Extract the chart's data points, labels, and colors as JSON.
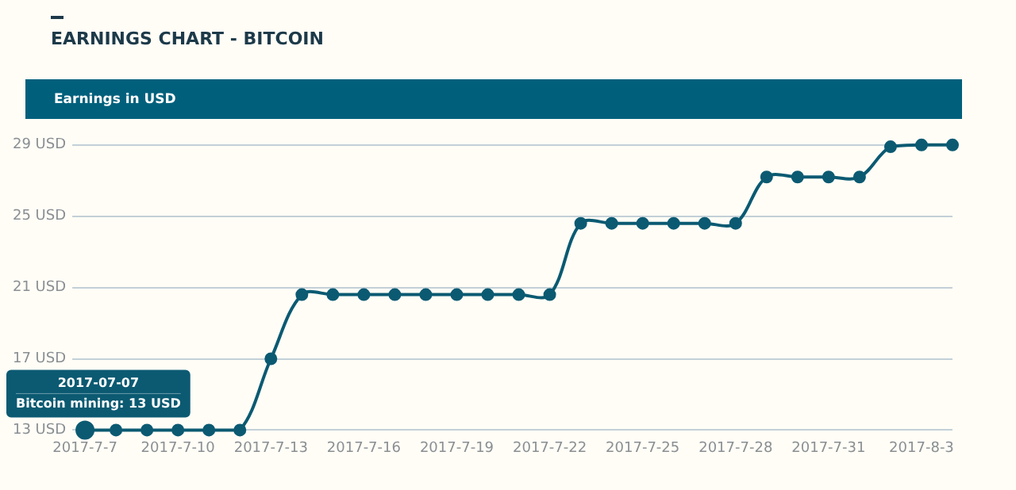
{
  "chart_data": {
    "type": "line",
    "title": "EARNINGS CHART - BITCOIN",
    "subtitle": "Earnings in USD",
    "categories": [
      "2017-7-7",
      null,
      null,
      "2017-7-10",
      null,
      null,
      "2017-7-13",
      null,
      null,
      "2017-7-16",
      null,
      null,
      "2017-7-19",
      null,
      null,
      "2017-7-22",
      null,
      null,
      "2017-7-25",
      null,
      null,
      "2017-7-28",
      null,
      null,
      "2017-7-31",
      null,
      null,
      "2017-8-3",
      null
    ],
    "series": [
      {
        "color": "#0b5a72",
        "values": [
          13,
          13,
          13,
          13,
          13,
          13,
          17,
          20.6,
          20.6,
          20.6,
          20.6,
          20.6,
          20.6,
          20.6,
          20.6,
          20.6,
          24.6,
          24.6,
          24.6,
          24.6,
          24.6,
          24.6,
          27.2,
          27.2,
          27.2,
          27.2,
          28.9,
          29,
          29
        ]
      }
    ],
    "ylim": [
      13,
      29
    ],
    "yticks": [
      {
        "value": 13,
        "label": "13 USD"
      },
      {
        "value": 17,
        "label": "17 USD"
      },
      {
        "value": 21,
        "label": "21 USD"
      },
      {
        "value": 25,
        "label": "25 USD"
      },
      {
        "value": 29,
        "label": "29 USD"
      }
    ],
    "annotations": [
      "2017-07-07",
      "Bitcoin mining: 13 USD"
    ],
    "grid": "y",
    "legend": false,
    "marker": "circle",
    "line_style": "solid"
  }
}
